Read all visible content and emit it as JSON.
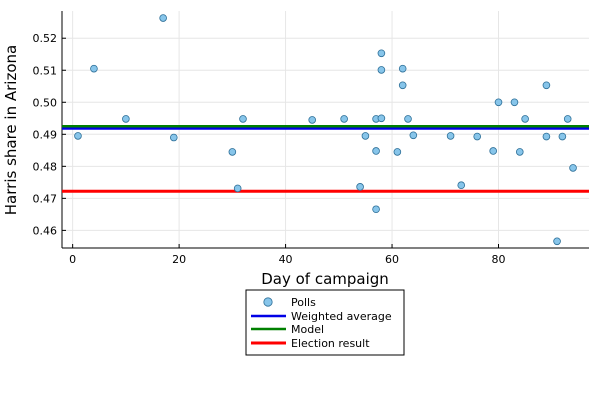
{
  "chart_data": {
    "type": "scatter",
    "title": "",
    "xlabel": "Day of campaign",
    "ylabel": "Harris share in Arizona",
    "xlim": [
      -2,
      97
    ],
    "ylim": [
      0.4545,
      0.5285
    ],
    "xticks": [
      0,
      20,
      40,
      60,
      80
    ],
    "yticks": [
      0.46,
      0.47,
      0.48,
      0.49,
      0.5,
      0.51,
      0.52
    ],
    "ytick_labels": [
      "0.46",
      "0.47",
      "0.48",
      "0.49",
      "0.50",
      "0.51",
      "0.52"
    ],
    "grid": true,
    "legend_position": "bottom-outside",
    "series": [
      {
        "name": "Polls",
        "kind": "scatter",
        "color": "#87c5ea",
        "edge_color": "#2d6f98",
        "points": [
          {
            "x": 1,
            "y": 0.4895
          },
          {
            "x": 4,
            "y": 0.5105
          },
          {
            "x": 10,
            "y": 0.4948
          },
          {
            "x": 17,
            "y": 0.5263
          },
          {
            "x": 19,
            "y": 0.489
          },
          {
            "x": 30,
            "y": 0.4845
          },
          {
            "x": 31,
            "y": 0.4731
          },
          {
            "x": 32,
            "y": 0.4948
          },
          {
            "x": 45,
            "y": 0.4945
          },
          {
            "x": 51,
            "y": 0.4948
          },
          {
            "x": 54,
            "y": 0.4736
          },
          {
            "x": 55,
            "y": 0.4895
          },
          {
            "x": 57,
            "y": 0.4948
          },
          {
            "x": 57,
            "y": 0.4848
          },
          {
            "x": 57,
            "y": 0.4666
          },
          {
            "x": 58,
            "y": 0.5153
          },
          {
            "x": 58,
            "y": 0.5101
          },
          {
            "x": 58,
            "y": 0.495
          },
          {
            "x": 61,
            "y": 0.4845
          },
          {
            "x": 62,
            "y": 0.5105
          },
          {
            "x": 62,
            "y": 0.5053
          },
          {
            "x": 63,
            "y": 0.4948
          },
          {
            "x": 64,
            "y": 0.4897
          },
          {
            "x": 71,
            "y": 0.4895
          },
          {
            "x": 73,
            "y": 0.4741
          },
          {
            "x": 76,
            "y": 0.4893
          },
          {
            "x": 79,
            "y": 0.4848
          },
          {
            "x": 80,
            "y": 0.5
          },
          {
            "x": 83,
            "y": 0.5
          },
          {
            "x": 84,
            "y": 0.4845
          },
          {
            "x": 85,
            "y": 0.4948
          },
          {
            "x": 89,
            "y": 0.5053
          },
          {
            "x": 89,
            "y": 0.4893
          },
          {
            "x": 91,
            "y": 0.4566
          },
          {
            "x": 92,
            "y": 0.4893
          },
          {
            "x": 93,
            "y": 0.4948
          },
          {
            "x": 94,
            "y": 0.4795
          }
        ]
      },
      {
        "name": "Weighted average",
        "kind": "hline",
        "color": "#0000e6",
        "value": 0.4918
      },
      {
        "name": "Model",
        "kind": "hline",
        "color": "#008000",
        "value": 0.4925
      },
      {
        "name": "Election result",
        "kind": "hline",
        "color": "#ff0000",
        "value": 0.4722
      }
    ]
  }
}
